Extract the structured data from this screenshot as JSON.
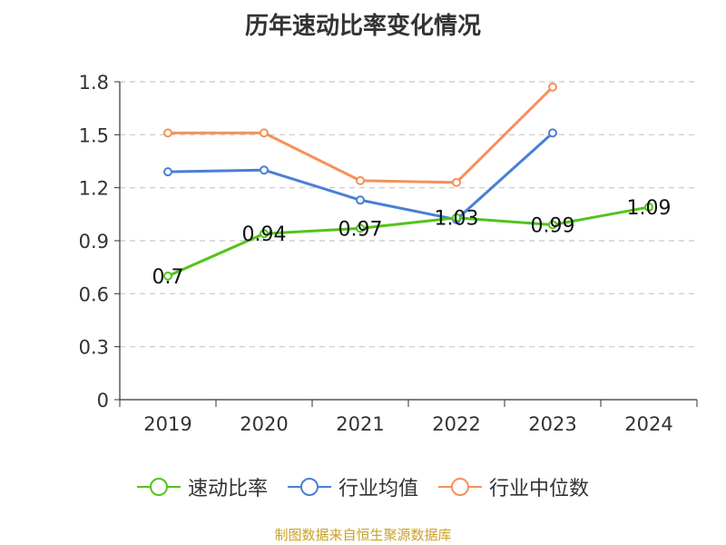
{
  "title": "历年速动比率变化情况",
  "source": "制图数据来自恒生聚源数据库",
  "chart_data": {
    "type": "line",
    "title": "历年速动比率变化情况",
    "categories": [
      "2019",
      "2020",
      "2021",
      "2022",
      "2023",
      "2024"
    ],
    "ylim": [
      0,
      1.8
    ],
    "yticks": [
      "0",
      "0.3",
      "0.6",
      "0.9",
      "1.2",
      "1.5",
      "1.8"
    ],
    "grid": true,
    "legend_position": "bottom",
    "series": [
      {
        "name": "速动比率",
        "color": "#52c41a",
        "values": [
          0.7,
          0.94,
          0.97,
          1.03,
          0.99,
          1.09
        ],
        "labels": [
          "0.7",
          "0.94",
          "0.97",
          "1.03",
          "0.99",
          "1.09"
        ]
      },
      {
        "name": "行业均值",
        "color": "#4a7fd6",
        "values": [
          1.29,
          1.3,
          1.13,
          1.02,
          1.51,
          null
        ]
      },
      {
        "name": "行业中位数",
        "color": "#f5915a",
        "values": [
          1.51,
          1.51,
          1.24,
          1.23,
          1.77,
          null
        ]
      }
    ]
  }
}
